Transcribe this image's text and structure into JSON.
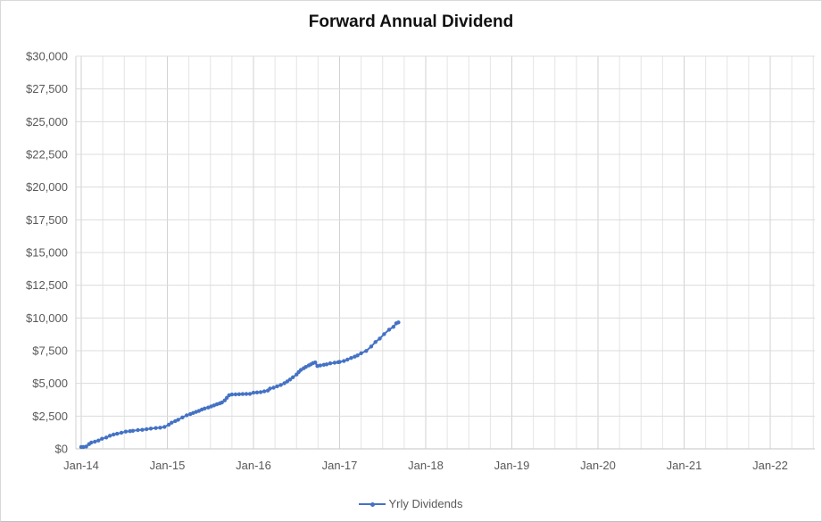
{
  "chart_data": {
    "type": "line",
    "title": "Forward Annual Dividend",
    "xlabel": "",
    "ylabel": "",
    "x_tick_labels": [
      "Jan-14",
      "Jan-15",
      "Jan-16",
      "Jan-17",
      "Jan-18",
      "Jan-19",
      "Jan-20",
      "Jan-21",
      "Jan-22"
    ],
    "y_tick_labels": [
      "$30,000",
      "$27,500",
      "$25,000",
      "$22,500",
      "$20,000",
      "$17,500",
      "$15,000",
      "$12,500",
      "$10,000",
      "$7,500",
      "$5,000",
      "$2,500",
      "$0"
    ],
    "ylim": [
      0,
      30000
    ],
    "y_step": 2500,
    "x_unit": "months since Jan-2014",
    "xlim_months": [
      0,
      102.5
    ],
    "grid": "horizontal every $2,500; vertical quarterly with darker year lines",
    "legend_position": "bottom-center",
    "series": [
      {
        "name": "Yrly Dividends",
        "color": "#4472C4",
        "marker": "circle",
        "points_months_value": [
          [
            0,
            140
          ],
          [
            0.3,
            140
          ],
          [
            0.7,
            180
          ],
          [
            1.1,
            360
          ],
          [
            1.4,
            475
          ],
          [
            1.9,
            545
          ],
          [
            2.4,
            635
          ],
          [
            2.9,
            770
          ],
          [
            3.5,
            865
          ],
          [
            4,
            1000
          ],
          [
            4.5,
            1090
          ],
          [
            5,
            1155
          ],
          [
            5.6,
            1225
          ],
          [
            6.2,
            1315
          ],
          [
            6.8,
            1350
          ],
          [
            7.2,
            1380
          ],
          [
            7.9,
            1430
          ],
          [
            8.5,
            1455
          ],
          [
            9.1,
            1500
          ],
          [
            9.7,
            1545
          ],
          [
            10.4,
            1590
          ],
          [
            11,
            1615
          ],
          [
            11.6,
            1680
          ],
          [
            12.2,
            1840
          ],
          [
            12.6,
            2000
          ],
          [
            13.1,
            2120
          ],
          [
            13.5,
            2225
          ],
          [
            14.1,
            2400
          ],
          [
            14.7,
            2565
          ],
          [
            15.2,
            2650
          ],
          [
            15.6,
            2740
          ],
          [
            16,
            2820
          ],
          [
            16.4,
            2900
          ],
          [
            16.8,
            3000
          ],
          [
            17.2,
            3080
          ],
          [
            17.7,
            3160
          ],
          [
            18.1,
            3240
          ],
          [
            18.5,
            3320
          ],
          [
            18.9,
            3400
          ],
          [
            19.3,
            3470
          ],
          [
            19.6,
            3540
          ],
          [
            20,
            3700
          ],
          [
            20.3,
            3900
          ],
          [
            20.6,
            4100
          ],
          [
            21,
            4150
          ],
          [
            21.5,
            4160
          ],
          [
            22,
            4175
          ],
          [
            22.5,
            4185
          ],
          [
            23,
            4195
          ],
          [
            23.5,
            4200
          ],
          [
            24,
            4290
          ],
          [
            24.5,
            4310
          ],
          [
            25,
            4330
          ],
          [
            25.5,
            4390
          ],
          [
            26,
            4450
          ],
          [
            26.3,
            4600
          ],
          [
            26.8,
            4670
          ],
          [
            27.3,
            4780
          ],
          [
            27.8,
            4880
          ],
          [
            28.3,
            5010
          ],
          [
            28.7,
            5150
          ],
          [
            29.1,
            5300
          ],
          [
            29.5,
            5470
          ],
          [
            30,
            5680
          ],
          [
            30.3,
            5870
          ],
          [
            30.6,
            6030
          ],
          [
            31,
            6160
          ],
          [
            31.3,
            6260
          ],
          [
            31.7,
            6370
          ],
          [
            32,
            6460
          ],
          [
            32.3,
            6550
          ],
          [
            32.6,
            6600
          ],
          [
            32.9,
            6330
          ],
          [
            33.3,
            6370
          ],
          [
            33.8,
            6420
          ],
          [
            34.2,
            6460
          ],
          [
            34.7,
            6530
          ],
          [
            35.3,
            6580
          ],
          [
            35.8,
            6620
          ],
          [
            36,
            6640
          ],
          [
            36.6,
            6710
          ],
          [
            37.1,
            6820
          ],
          [
            37.6,
            6940
          ],
          [
            38.1,
            7040
          ],
          [
            38.5,
            7140
          ],
          [
            39,
            7300
          ],
          [
            39.7,
            7480
          ],
          [
            40.4,
            7820
          ],
          [
            41,
            8160
          ],
          [
            41.6,
            8430
          ],
          [
            42.2,
            8770
          ],
          [
            42.9,
            9110
          ],
          [
            43.5,
            9320
          ],
          [
            43.9,
            9590
          ],
          [
            44.2,
            9660
          ]
        ]
      }
    ]
  },
  "colors": {
    "series_blue": "#4472C4",
    "axis_text": "#595959",
    "grid_minor": "#e4e4e4",
    "grid_major": "#d2d2d2",
    "grid_horizontal": "#dcdcdc",
    "axis_line": "#c6c6c6",
    "frame_border": "#d9d9d9",
    "title_text": "#111111",
    "background": "#ffffff"
  },
  "legend": {
    "label": "Yrly Dividends"
  }
}
